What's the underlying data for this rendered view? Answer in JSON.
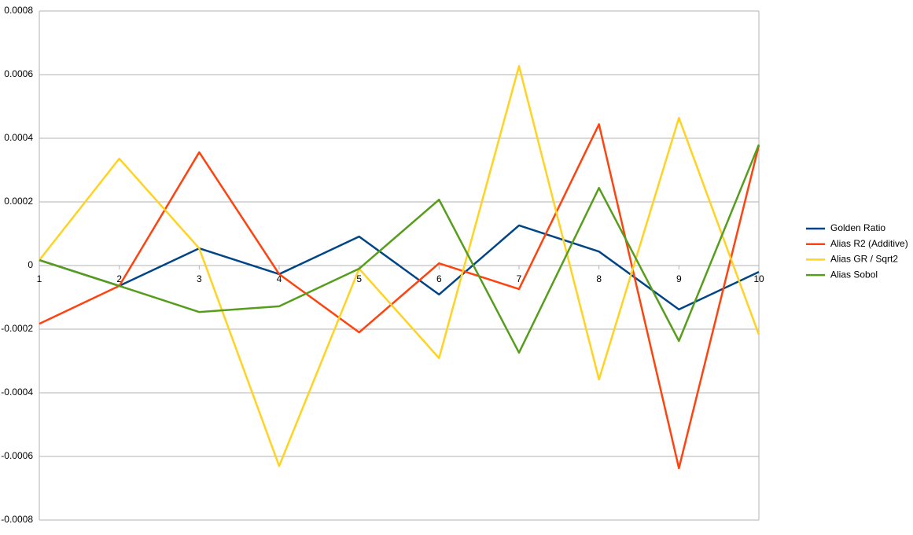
{
  "chart_data": {
    "type": "line",
    "x": [
      1,
      2,
      3,
      4,
      5,
      6,
      7,
      8,
      9,
      10
    ],
    "xlim": [
      1,
      10
    ],
    "xticks": [
      1,
      2,
      3,
      4,
      5,
      6,
      7,
      8,
      9,
      10
    ],
    "ylim": [
      -0.0008,
      0.0008
    ],
    "yticks": [
      -0.0008,
      -0.0006,
      -0.0004,
      -0.0002,
      0,
      0.0002,
      0.0004,
      0.0006,
      0.0008
    ],
    "grid": true,
    "legend": "right",
    "series": [
      {
        "name": "Golden Ratio",
        "color": "#004586",
        "values": [
          1.7e-05,
          -6.4e-05,
          5.4e-05,
          -2.7e-05,
          9.1e-05,
          -9.1e-05,
          0.000126,
          4.4e-05,
          -0.000138,
          -2e-05
        ]
      },
      {
        "name": "Alias R2 (Additive)",
        "color": "#ff420e",
        "values": [
          -0.000183,
          -6.4e-05,
          0.000356,
          -2.7e-05,
          -0.00021,
          7e-06,
          -7.4e-05,
          0.000444,
          -0.000637,
          0.000378
        ]
      },
      {
        "name": "Alias GR / Sqrt2",
        "color": "#ffd320",
        "values": [
          1.7e-05,
          0.000336,
          5.4e-05,
          -0.00063,
          -1e-05,
          -0.000291,
          0.000627,
          -0.000358,
          0.000464,
          -0.000217
        ]
      },
      {
        "name": "Alias Sobol",
        "color": "#579d1c",
        "values": [
          1.7e-05,
          -6.4e-05,
          -0.000146,
          -0.000128,
          -1e-05,
          0.000207,
          -0.000274,
          0.000244,
          -0.000237,
          0.00038
        ]
      }
    ]
  }
}
